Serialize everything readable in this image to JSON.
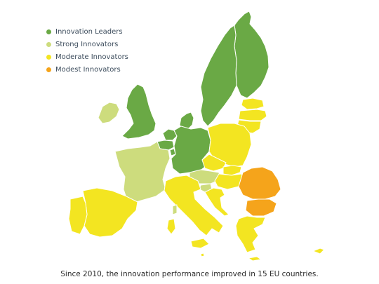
{
  "legend": {
    "items": [
      {
        "label": "Innovation Leaders",
        "color": "#6aa945"
      },
      {
        "label": "Strong Innovators",
        "color": "#cddc7d"
      },
      {
        "label": "Moderate Innovators",
        "color": "#f3e521"
      },
      {
        "label": "Modest Innovators",
        "color": "#f5a41b"
      }
    ]
  },
  "caption": "Since 2010, the innovation performance improved in 15 EU countries.",
  "map": {
    "category_colors": {
      "leader": "#6aa945",
      "strong": "#cddc7d",
      "moderate": "#f3e521",
      "modest": "#f5a41b"
    }
  }
}
